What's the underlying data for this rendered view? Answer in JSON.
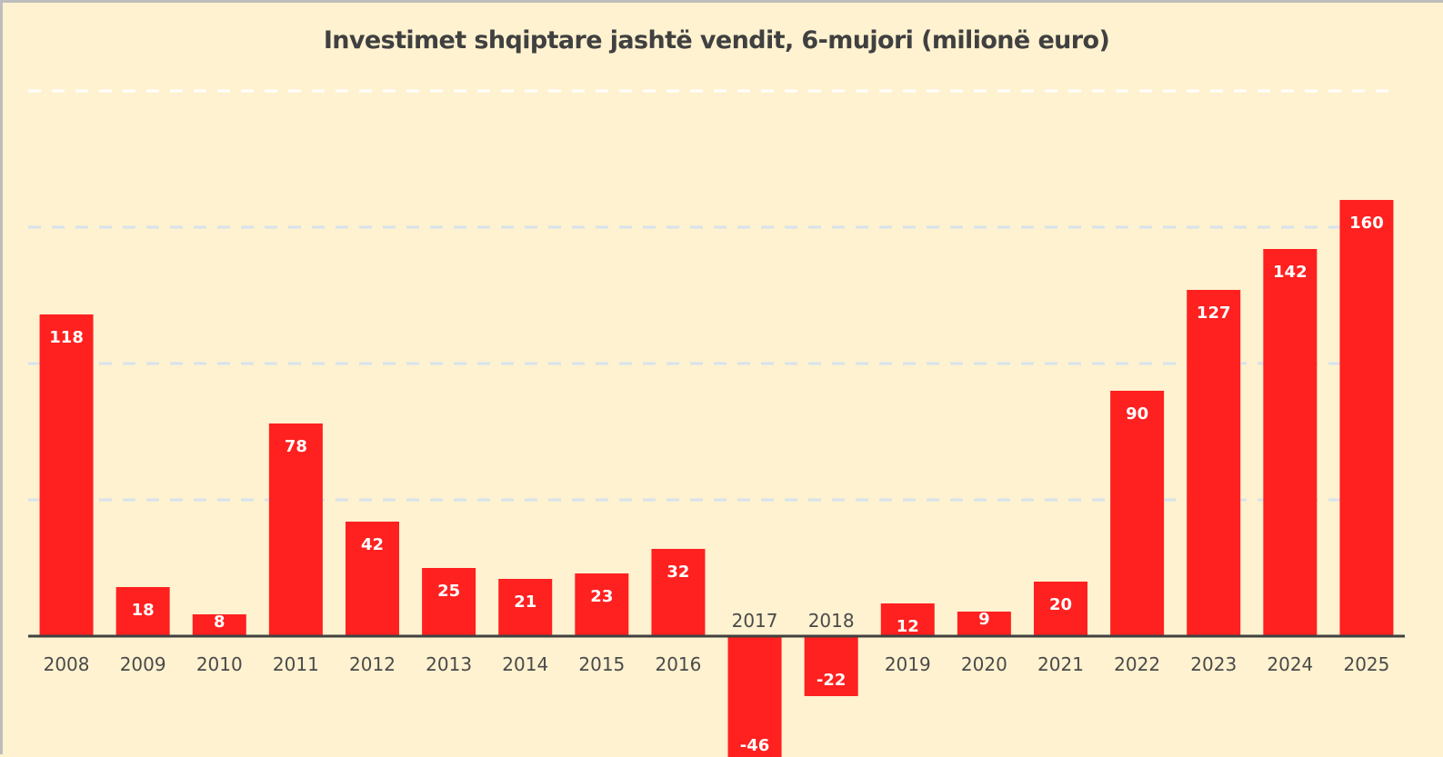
{
  "chart_data": {
    "type": "bar",
    "title": "Investimet shqiptare jashtë vendit, 6-mujori (milionë euro)",
    "xlabel": "",
    "ylabel": "",
    "categories": [
      "2008",
      "2009",
      "2010",
      "2011",
      "2012",
      "2013",
      "2014",
      "2015",
      "2016",
      "2017",
      "2018",
      "2019",
      "2020",
      "2021",
      "2022",
      "2023",
      "2024",
      "2025"
    ],
    "values": [
      118,
      18,
      8,
      78,
      42,
      25,
      21,
      23,
      32,
      -46,
      -22,
      12,
      9,
      20,
      90,
      127,
      142,
      160
    ],
    "ylim": [
      -50,
      200
    ],
    "gridlines": [
      50,
      100,
      150,
      200
    ],
    "grid": true,
    "legend": "none",
    "colors": {
      "bar": "#ff2020",
      "background": "#fff2d0",
      "gridline": "#d6e3ec",
      "axis": "#404040",
      "label": "#ffffff"
    }
  }
}
